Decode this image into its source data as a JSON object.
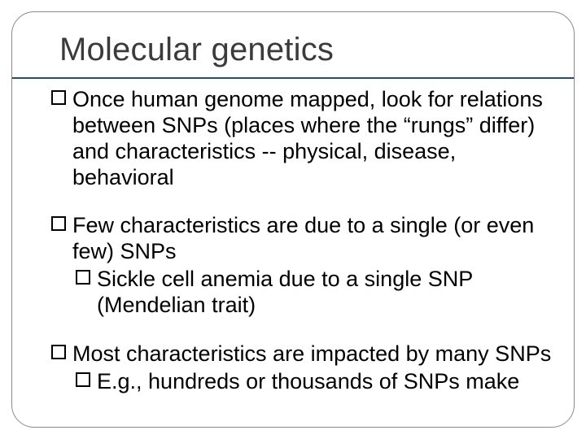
{
  "slide": {
    "title": "Molecular genetics",
    "title_fontsize": 40,
    "title_color": "#3b3b3b",
    "rule_color": "#1f4e79",
    "frame_border_color": "#8a8a8a",
    "frame_radius": 28,
    "background_color": "#ffffff",
    "body_fontsize": 27,
    "body_color": "#000000",
    "bullets": [
      {
        "level": 1,
        "text": "Once human genome mapped, look for relations between SNPs (places where the “rungs” differ) and characteristics -- physical, disease, behavioral"
      },
      {
        "level": 1,
        "text": "Few characteristics are due to a single (or even few) SNPs"
      },
      {
        "level": 2,
        "text": "Sickle cell anemia due to a single SNP (Mendelian trait)"
      },
      {
        "level": 1,
        "text": "Most characteristics are impacted by many SNPs"
      },
      {
        "level": 2,
        "text": "E.g., hundreds or thousands of SNPs make"
      }
    ]
  }
}
